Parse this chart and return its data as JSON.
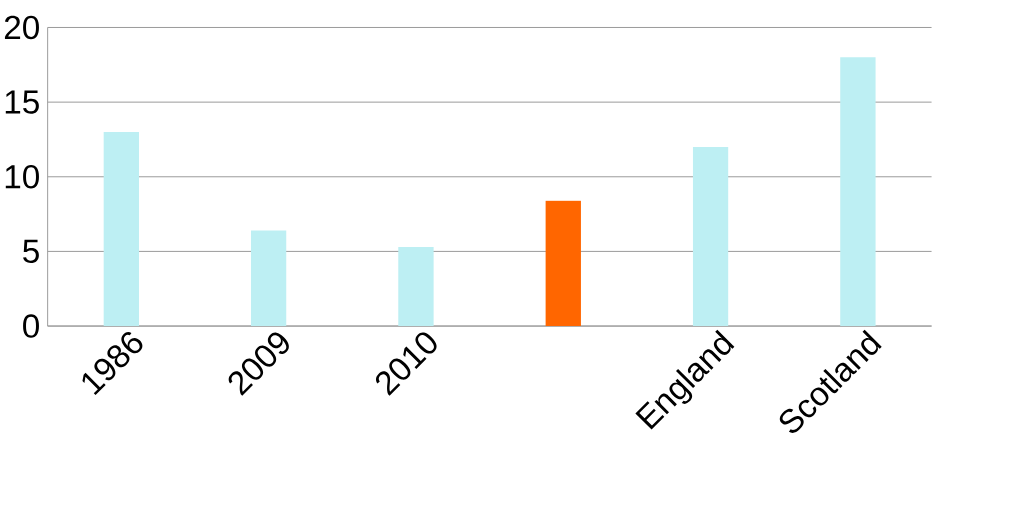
{
  "chart_data": {
    "type": "bar",
    "categories": [
      "1986",
      "2009",
      "2010",
      null,
      "England",
      "Scotland"
    ],
    "values": [
      13,
      6.4,
      5.3,
      8.4,
      12,
      18
    ],
    "colors": [
      "#bdeff3",
      "#bdeff3",
      "#bdeff3",
      "#ff6600",
      "#bdeff3",
      "#bdeff3"
    ],
    "ylim": [
      0,
      20
    ],
    "yticks": [
      0,
      5,
      10,
      15,
      20
    ],
    "grid": "y"
  }
}
